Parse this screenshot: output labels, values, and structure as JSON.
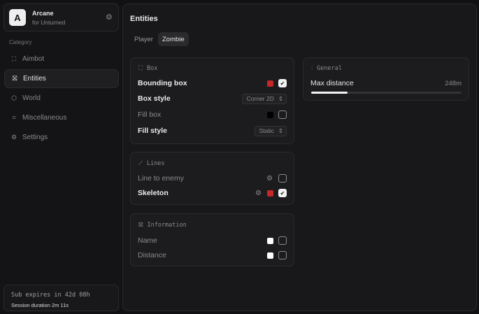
{
  "app": {
    "name": "Arcane",
    "subtitle": "for Unturned",
    "logo_letter": "A"
  },
  "sidebar": {
    "category_label": "Category",
    "items": [
      {
        "label": "Aimbot",
        "icon": "crosshair-icon",
        "active": false
      },
      {
        "label": "Entities",
        "icon": "scan-icon",
        "active": true
      },
      {
        "label": "World",
        "icon": "cube-icon",
        "active": false
      },
      {
        "label": "Miscellaneous",
        "icon": "grid-icon",
        "active": false
      },
      {
        "label": "Settings",
        "icon": "gear-icon",
        "active": false
      }
    ],
    "footer": {
      "subscription": "Sub expires in 42d 08h",
      "session": "Session duration 2m 11s"
    }
  },
  "main": {
    "title": "Entities",
    "tabs": [
      {
        "label": "Player",
        "active": false
      },
      {
        "label": "Zombie",
        "active": true
      }
    ],
    "box": {
      "title": "Box",
      "bounding_box": {
        "label": "Bounding box",
        "color": "#c62828",
        "checked": true
      },
      "box_style": {
        "label": "Box style",
        "value": "Corner 2D"
      },
      "fill_box": {
        "label": "Fill box",
        "color": "#000000",
        "checked": false
      },
      "fill_style": {
        "label": "Fill style",
        "value": "Static"
      }
    },
    "lines": {
      "title": "Lines",
      "line_to_enemy": {
        "label": "Line to enemy",
        "checked": false
      },
      "skeleton": {
        "label": "Skeleton",
        "color": "#c62828",
        "checked": true
      }
    },
    "information": {
      "title": "Information",
      "name": {
        "label": "Name",
        "color": "#ffffff",
        "checked": false
      },
      "distance": {
        "label": "Distance",
        "color": "#ffffff",
        "checked": false
      }
    },
    "general": {
      "title": "General",
      "max_distance": {
        "label": "Max distance",
        "value": "248m",
        "fill_percent": 24
      }
    }
  }
}
